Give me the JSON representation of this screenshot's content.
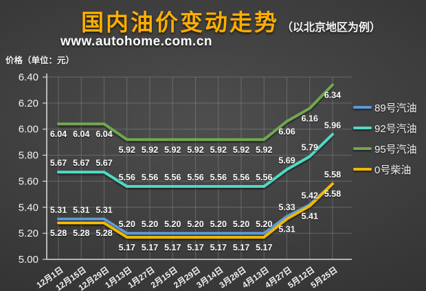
{
  "chart_data": {
    "type": "line",
    "title": "国内油价变动走势",
    "subtitle": "（以北京地区为例）",
    "watermark": "www.autohome.com.cn",
    "ylabel": "价格（单位：元）",
    "categories": [
      "12月1日",
      "12月15日",
      "12月29日",
      "1月13日",
      "1月27日",
      "2月15日",
      "2月29日",
      "3月14日",
      "3月28日",
      "4月13日",
      "4月27日",
      "5月12日",
      "5月25日"
    ],
    "series": [
      {
        "name": "89号汽油",
        "color": "#5B9BD5",
        "label_pos": "above",
        "values": [
          5.31,
          5.31,
          5.31,
          5.2,
          5.2,
          5.2,
          5.2,
          5.2,
          5.2,
          5.2,
          5.33,
          5.42,
          5.58
        ]
      },
      {
        "name": "92号汽油",
        "color": "#4FD9C8",
        "label_pos": "above",
        "values": [
          5.67,
          5.67,
          5.67,
          5.56,
          5.56,
          5.56,
          5.56,
          5.56,
          5.56,
          5.56,
          5.69,
          5.79,
          5.96
        ]
      },
      {
        "name": "95号汽油",
        "color": "#6FA850",
        "label_pos": "below",
        "values": [
          6.04,
          6.04,
          6.04,
          5.92,
          5.92,
          5.92,
          5.92,
          5.92,
          5.92,
          5.92,
          6.06,
          6.16,
          6.34
        ]
      },
      {
        "name": "0号柴油",
        "color": "#F2B800",
        "label_pos": "below",
        "values": [
          5.28,
          5.28,
          5.28,
          5.17,
          5.17,
          5.17,
          5.17,
          5.17,
          5.17,
          5.17,
          5.31,
          5.41,
          5.58
        ]
      }
    ],
    "ylim": [
      5.0,
      6.4
    ],
    "yticks": [
      "6.40",
      "6.20",
      "6.00",
      "5.80",
      "5.60",
      "5.40",
      "5.20",
      "5.00"
    ],
    "grid": true,
    "legend_position": "right",
    "colors": {
      "title": "#FFAE00",
      "axis_text": "#F2F2F2",
      "background": "#3D3D3D"
    }
  }
}
